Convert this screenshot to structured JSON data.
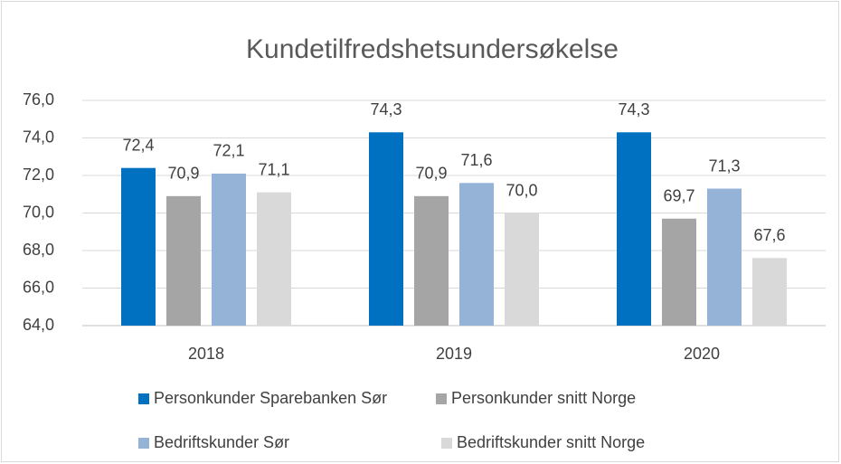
{
  "chart_data": {
    "type": "bar",
    "title": "Kundetilfredshetsundersøkelse",
    "categories": [
      "2018",
      "2019",
      "2020"
    ],
    "series": [
      {
        "name": "Personkunder Sparebanken Sør",
        "color": "#0070c0",
        "values": [
          72.4,
          74.3,
          74.3
        ],
        "value_labels": [
          "72,4",
          "74,3",
          "74,3"
        ]
      },
      {
        "name": "Personkunder snitt Norge",
        "color": "#a5a5a5",
        "values": [
          70.9,
          70.9,
          69.7
        ],
        "value_labels": [
          "70,9",
          "70,9",
          "69,7"
        ]
      },
      {
        "name": "Bedriftskunder Sør",
        "color": "#95b3d7",
        "values": [
          72.1,
          71.6,
          71.3
        ],
        "value_labels": [
          "72,1",
          "71,6",
          "71,3"
        ]
      },
      {
        "name": "Bedriftskunder snitt Norge",
        "color": "#d9d9d9",
        "values": [
          71.1,
          70.0,
          67.6
        ],
        "value_labels": [
          "71,1",
          "70,0",
          "67,6"
        ]
      }
    ],
    "ylim": [
      64,
      76
    ],
    "yticks": [
      {
        "value": 64,
        "label": "64,0"
      },
      {
        "value": 66,
        "label": "66,0"
      },
      {
        "value": 68,
        "label": "68,0"
      },
      {
        "value": 70,
        "label": "70,0"
      },
      {
        "value": 72,
        "label": "72,0"
      },
      {
        "value": 74,
        "label": "74,0"
      },
      {
        "value": 76,
        "label": "76,0"
      }
    ],
    "grid": true,
    "legend": "bottom"
  }
}
